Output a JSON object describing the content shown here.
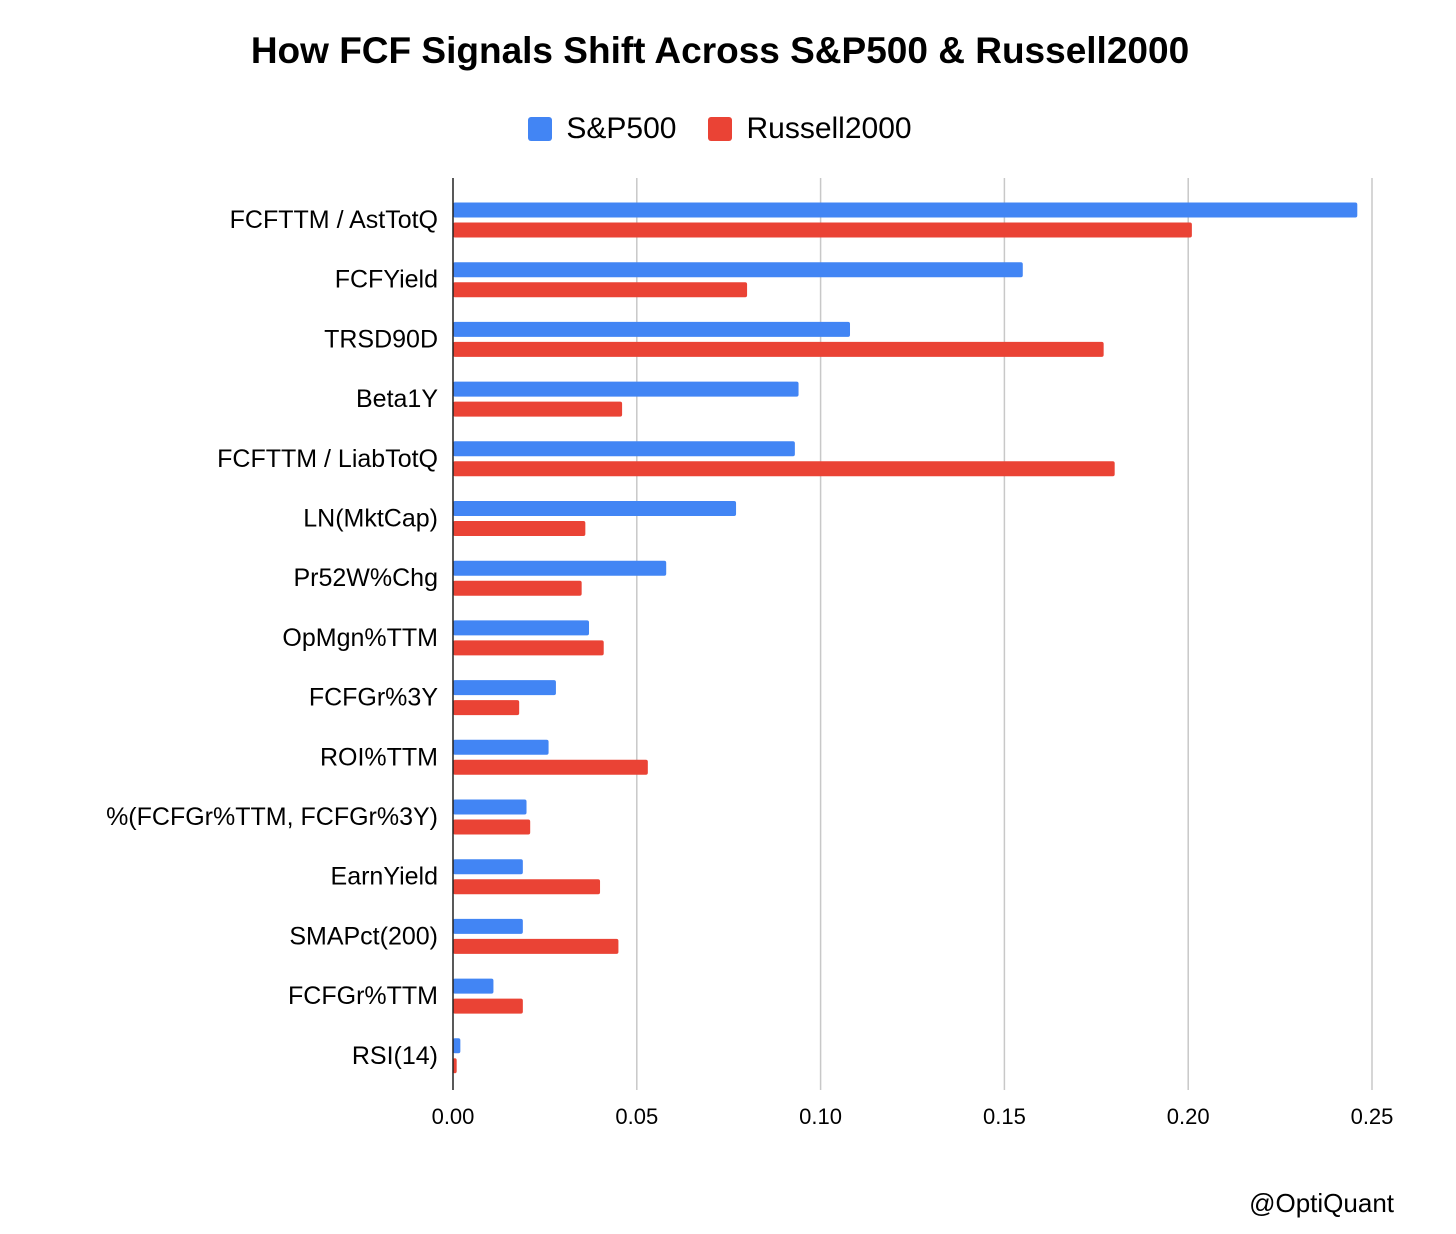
{
  "chart_data": {
    "type": "bar",
    "orientation": "horizontal",
    "title": "How FCF Signals Shift Across S&P500 & Russell2000",
    "categories": [
      "FCFTTM / AstTotQ",
      "FCFYield",
      "TRSD90D",
      "Beta1Y",
      "FCFTTM / LiabTotQ",
      "LN(MktCap)",
      "Pr52W%Chg",
      "OpMgn%TTM",
      "FCFGr%3Y",
      "ROI%TTM",
      "%(FCFGr%TTM, FCFGr%3Y)",
      "EarnYield",
      "SMAPct(200)",
      "FCFGr%TTM",
      "RSI(14)"
    ],
    "series": [
      {
        "name": "S&P500",
        "color": "#4285f4",
        "values": [
          0.246,
          0.155,
          0.108,
          0.094,
          0.093,
          0.077,
          0.058,
          0.037,
          0.028,
          0.026,
          0.02,
          0.019,
          0.019,
          0.011,
          0.002
        ]
      },
      {
        "name": "Russell2000",
        "color": "#ea4335",
        "values": [
          0.201,
          0.08,
          0.177,
          0.046,
          0.18,
          0.036,
          0.035,
          0.041,
          0.018,
          0.053,
          0.021,
          0.04,
          0.045,
          0.019,
          0.001
        ]
      }
    ],
    "xlim": [
      0,
      0.25
    ],
    "xticks": [
      "0.00",
      "0.05",
      "0.10",
      "0.15",
      "0.20",
      "0.25"
    ],
    "xtick_values": [
      0,
      0.05,
      0.1,
      0.15,
      0.2,
      0.25
    ],
    "grid": true,
    "legend_position": "top-center"
  },
  "watermark": "@OptiQuant"
}
